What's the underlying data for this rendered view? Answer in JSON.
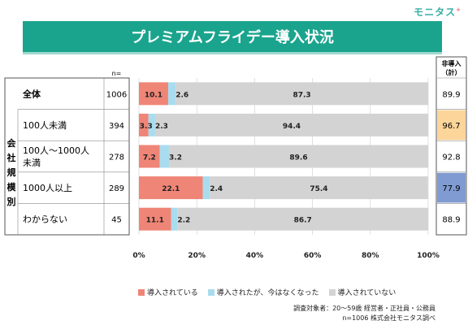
{
  "brand": {
    "logo_text": "モニタス",
    "logo_mark": "+"
  },
  "header": {
    "title": "プレミアムフライデー導入状況"
  },
  "table": {
    "n_header": "n=",
    "right_header_1": "非導入",
    "right_header_2": "（計）",
    "group_label": "会社規模別"
  },
  "legend": [
    {
      "label": "導入されている",
      "color": "#ef8577"
    },
    {
      "label": "導入されたが、今はなくなった",
      "color": "#a9dcef"
    },
    {
      "label": "導入されていない",
      "color": "#d3d3d3"
    }
  ],
  "notes": {
    "line1": "調査対象者：20～59歳 経営者・正社員・公務員",
    "line2": "n=1006 株式会社モニタス調べ"
  },
  "chart_data": {
    "type": "bar",
    "orientation": "horizontal",
    "stacked": true,
    "percent": true,
    "xlim": [
      0,
      100
    ],
    "xticks": [
      "0%",
      "20%",
      "40%",
      "60%",
      "80%",
      "100%"
    ],
    "categories": [
      "全体",
      "100人未満",
      "100人～1000人未満",
      "1000人以上",
      "わからない"
    ],
    "category_lines": [
      [
        "全体"
      ],
      [
        "100人未満"
      ],
      [
        "100人～1000人",
        "未満"
      ],
      [
        "1000人以上"
      ],
      [
        "わからない"
      ]
    ],
    "n": [
      "1006",
      "394",
      "278",
      "289",
      "45"
    ],
    "series": [
      {
        "name": "導入されている",
        "values": [
          10.1,
          3.3,
          7.2,
          22.1,
          11.1
        ]
      },
      {
        "name": "導入されたが、今はなくなった",
        "values": [
          2.6,
          2.3,
          3.2,
          2.4,
          2.2
        ]
      },
      {
        "name": "導入されていない",
        "values": [
          87.3,
          94.4,
          89.6,
          75.4,
          86.7
        ]
      }
    ],
    "data_labels": [
      [
        "10.1",
        "2.6",
        "87.3"
      ],
      [
        "3.3",
        "2.3",
        "94.4"
      ],
      [
        "7.2",
        "3.2",
        "89.6"
      ],
      [
        "22.1",
        "2.4",
        "75.4"
      ],
      [
        "11.1",
        "2.2",
        "86.7"
      ]
    ],
    "non_adoption_total": [
      "89.9",
      "96.7",
      "92.8",
      "77.9",
      "88.9"
    ],
    "non_adoption_highlight": [
      null,
      "#fbd59a",
      null,
      "#7f9bd1",
      null
    ]
  }
}
